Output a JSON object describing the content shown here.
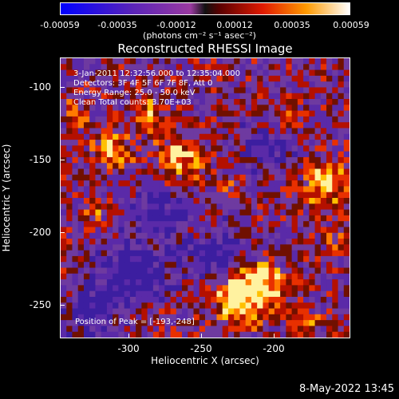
{
  "colorbar": {
    "ticks": [
      "-0.00059",
      "-0.00035",
      "-0.00012",
      "0.00012",
      "0.00035",
      "0.00059"
    ],
    "units": "(photons cm⁻² s⁻¹ asec⁻²)",
    "range": [
      -0.00059,
      0.00059
    ]
  },
  "plot": {
    "title": "Reconstructed RHESSI Image",
    "xlabel": "Heliocentric X (arcsec)",
    "ylabel": "Heliocentric Y (arcsec)",
    "xticks": [
      "-300",
      "-250",
      "-200"
    ],
    "yticks": [
      "-100",
      "-150",
      "-200",
      "-250"
    ],
    "info": {
      "time": "3-Jan-2011 12:32:56.000 to 12:35:04.000",
      "detectors": "Detectors: 3F 4F 5F 6F 7F 8F, Att 0",
      "energy": "Energy Range: 25.0 - 50.0 keV",
      "clean": "Clean     Total counts: 3.70E+03"
    },
    "peak": "Position of Peak = [-193,-248]"
  },
  "footer": {
    "date": "8-May-2022 13:45"
  },
  "chart_data": {
    "type": "heatmap",
    "title": "Reconstructed RHESSI Image",
    "xlabel": "Heliocentric X (arcsec)",
    "ylabel": "Heliocentric Y (arcsec)",
    "xlim": [
      -345,
      -145
    ],
    "ylim": [
      -275,
      -82
    ],
    "zlim": [
      -0.00059,
      0.00059
    ],
    "colormap": "rainbow-to-hot (blue-purple negative, red-yellow-white positive)",
    "peak_position": [
      -193,
      -248
    ]
  }
}
